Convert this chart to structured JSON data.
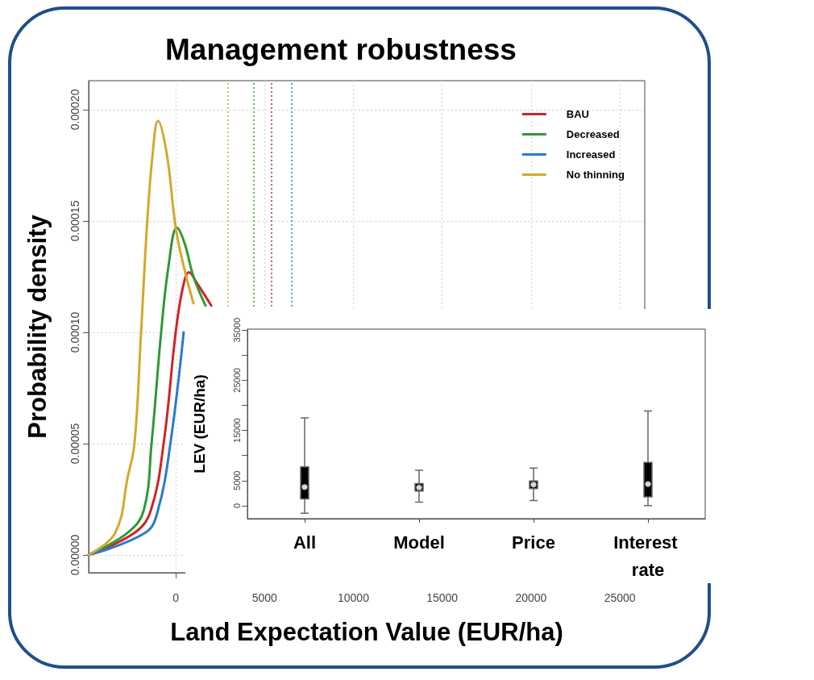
{
  "chart_data": [
    {
      "type": "line",
      "title": "Management robustness",
      "xlabel": "Land Expectation Value (EUR/ha)",
      "ylabel": "Probability density",
      "xlim": [
        -4900,
        26400
      ],
      "xticks": [
        0,
        5000,
        10000,
        15000,
        20000,
        25000
      ],
      "ylim": [
        -8e-06,
        0.000213
      ],
      "yticks": [
        {
          "value": 0,
          "label": "0.00000"
        },
        {
          "value": 5e-05,
          "label": "0.00005"
        },
        {
          "value": 0.0001,
          "label": "0.00010"
        },
        {
          "value": 0.00015,
          "label": "0.00015"
        },
        {
          "value": 0.0002,
          "label": "0.00020"
        }
      ],
      "grid": true,
      "legend": "top right",
      "marker": "none",
      "line_style": "solid",
      "series": [
        {
          "name": "BAU",
          "color": "#cc2529",
          "x": [
            -4900,
            -2300,
            -1400,
            -680,
            0,
            400,
            750,
            1200,
            2000
          ],
          "values": [
            0,
            1e-05,
            2e-05,
            5e-05,
            0.0001,
            0.00012,
            0.000127,
            0.000122,
            0.000112
          ]
        },
        {
          "name": "Decreased",
          "color": "#2e9a33",
          "x": [
            -4900,
            -2700,
            -1800,
            -1360,
            -820,
            -400,
            70,
            500,
            1000,
            1680
          ],
          "values": [
            0,
            1e-05,
            2e-05,
            5e-05,
            0.0001,
            0.00013,
            0.000147,
            0.00014,
            0.000125,
            0.000112
          ]
        },
        {
          "name": "Increased",
          "color": "#2a7ad1",
          "x": [
            -4900,
            -1700,
            -1000,
            -300,
            450
          ],
          "values": [
            0,
            1e-05,
            2e-05,
            5e-05,
            0.0001
          ]
        },
        {
          "name": "No thinning",
          "color": "#d4a82a",
          "x": [
            -4900,
            -3400,
            -2700,
            -2320,
            -1950,
            -1600,
            -1300,
            -1000,
            -500,
            0,
            500,
            1000
          ],
          "values": [
            0,
            1e-05,
            3.5e-05,
            5e-05,
            0.0001,
            0.00015,
            0.00018,
            0.000195,
            0.00018,
            0.000147,
            0.000128,
            0.000113
          ]
        }
      ],
      "ref_lines": [
        {
          "axis": "x",
          "value": 2950,
          "color": "#d4a82a",
          "line_style": "dotted"
        },
        {
          "axis": "x",
          "value": 4400,
          "color": "#2e9a33",
          "line_style": "dotted"
        },
        {
          "axis": "x",
          "value": 5400,
          "color": "#cc2529",
          "line_style": "dotted"
        },
        {
          "axis": "x",
          "value": 6500,
          "color": "#2a7ad1",
          "line_style": "dotted"
        }
      ]
    },
    {
      "type": "box",
      "ylabel": "LEV (EUR/ha)",
      "categories": [
        "All",
        "Model",
        "Price",
        "Interest rate"
      ],
      "color": "#000000",
      "ylim": [
        -2600,
        35200
      ],
      "yticks": [
        0,
        5000,
        {
          "value": 10000,
          "label": null
        },
        15000,
        {
          "value": 20000,
          "label": null
        },
        25000,
        {
          "value": 30000,
          "label": null
        },
        35000
      ],
      "marker": "circle",
      "series": [
        {
          "type": "scatter",
          "color": "#ffffff",
          "x": [
            "All",
            "Model",
            "Price",
            "Interest rate"
          ],
          "values": [
            3700,
            3600,
            4200,
            4300
          ]
        }
      ],
      "boxes": [
        {
          "low": -1500,
          "q1": 1340,
          "median": 3700,
          "q3": 7740,
          "high": 17500
        },
        {
          "low": 700,
          "q1": 2900,
          "median": 3600,
          "q3": 4400,
          "high": 7060
        },
        {
          "low": 1000,
          "q1": 3400,
          "median": 4200,
          "q3": 4900,
          "high": 7500
        },
        {
          "low": 0,
          "q1": 1760,
          "median": 4300,
          "q3": 8630,
          "high": 18860
        }
      ]
    }
  ]
}
